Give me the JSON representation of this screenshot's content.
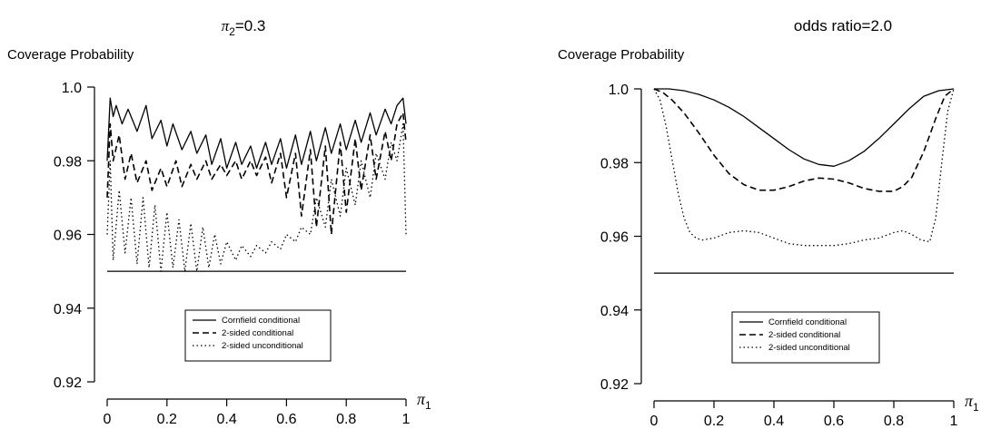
{
  "chart_data": [
    {
      "type": "line",
      "title_main": "π",
      "title_sub": "2",
      "title_rest": "=0.3",
      "ylabel": "Coverage Probability",
      "xlabel_main": "π",
      "xlabel_sub": "1",
      "xlim": [
        0,
        1
      ],
      "ylim": [
        0.92,
        1.0
      ],
      "xticks": [
        0,
        0.2,
        0.4,
        0.6,
        0.8,
        1
      ],
      "xtick_labels": [
        "0",
        "0.2",
        "0.4",
        "0.6",
        "0.8",
        "1"
      ],
      "yticks": [
        0.92,
        0.94,
        0.96,
        0.98,
        1.0
      ],
      "ytick_labels": [
        "0.92",
        "0.94",
        "0.96",
        "0.98",
        "1.0"
      ],
      "legend": [
        "Cornfield conditional",
        "2-sided conditional",
        "2-sided unconditional"
      ],
      "legend_position": "bottom-center",
      "reference_line": 0.95,
      "series": [
        {
          "name": "Cornfield conditional",
          "style": "solid",
          "x": [
            0,
            0.01,
            0.02,
            0.03,
            0.05,
            0.07,
            0.1,
            0.13,
            0.15,
            0.18,
            0.2,
            0.22,
            0.25,
            0.28,
            0.3,
            0.33,
            0.35,
            0.38,
            0.4,
            0.43,
            0.45,
            0.48,
            0.5,
            0.53,
            0.55,
            0.58,
            0.6,
            0.63,
            0.65,
            0.68,
            0.7,
            0.73,
            0.75,
            0.78,
            0.8,
            0.83,
            0.85,
            0.88,
            0.9,
            0.93,
            0.95,
            0.97,
            0.99,
            1.0
          ],
          "y": [
            0.98,
            0.997,
            0.992,
            0.995,
            0.99,
            0.994,
            0.988,
            0.995,
            0.986,
            0.991,
            0.984,
            0.99,
            0.983,
            0.988,
            0.982,
            0.987,
            0.979,
            0.986,
            0.978,
            0.985,
            0.979,
            0.984,
            0.978,
            0.985,
            0.979,
            0.986,
            0.978,
            0.987,
            0.979,
            0.988,
            0.98,
            0.989,
            0.982,
            0.99,
            0.983,
            0.991,
            0.985,
            0.993,
            0.987,
            0.994,
            0.99,
            0.995,
            0.997,
            0.99
          ]
        },
        {
          "name": "2-sided conditional",
          "style": "dashed",
          "x": [
            0,
            0.01,
            0.02,
            0.04,
            0.06,
            0.08,
            0.1,
            0.13,
            0.15,
            0.18,
            0.2,
            0.23,
            0.25,
            0.28,
            0.3,
            0.33,
            0.35,
            0.38,
            0.4,
            0.43,
            0.45,
            0.48,
            0.5,
            0.53,
            0.55,
            0.58,
            0.6,
            0.63,
            0.65,
            0.68,
            0.7,
            0.73,
            0.75,
            0.78,
            0.8,
            0.83,
            0.85,
            0.88,
            0.9,
            0.93,
            0.95,
            0.97,
            0.99,
            1.0
          ],
          "y": [
            0.97,
            0.99,
            0.98,
            0.987,
            0.975,
            0.982,
            0.974,
            0.98,
            0.972,
            0.978,
            0.973,
            0.98,
            0.973,
            0.979,
            0.975,
            0.98,
            0.975,
            0.979,
            0.976,
            0.98,
            0.975,
            0.98,
            0.976,
            0.981,
            0.974,
            0.982,
            0.97,
            0.982,
            0.965,
            0.983,
            0.962,
            0.984,
            0.96,
            0.985,
            0.966,
            0.986,
            0.972,
            0.987,
            0.975,
            0.988,
            0.98,
            0.99,
            0.993,
            0.985
          ]
        },
        {
          "name": "2-sided unconditional",
          "style": "dotted",
          "x": [
            0,
            0.01,
            0.02,
            0.04,
            0.06,
            0.08,
            0.1,
            0.12,
            0.14,
            0.16,
            0.18,
            0.2,
            0.22,
            0.24,
            0.26,
            0.28,
            0.3,
            0.32,
            0.34,
            0.36,
            0.38,
            0.4,
            0.43,
            0.45,
            0.48,
            0.5,
            0.53,
            0.55,
            0.58,
            0.6,
            0.63,
            0.65,
            0.68,
            0.7,
            0.73,
            0.75,
            0.78,
            0.8,
            0.83,
            0.85,
            0.88,
            0.9,
            0.93,
            0.95,
            0.97,
            0.99,
            1.0
          ],
          "y": [
            0.96,
            0.98,
            0.953,
            0.972,
            0.955,
            0.97,
            0.952,
            0.97,
            0.951,
            0.968,
            0.95,
            0.966,
            0.951,
            0.964,
            0.95,
            0.963,
            0.95,
            0.962,
            0.951,
            0.96,
            0.952,
            0.958,
            0.953,
            0.957,
            0.954,
            0.957,
            0.955,
            0.958,
            0.956,
            0.96,
            0.958,
            0.962,
            0.96,
            0.97,
            0.962,
            0.975,
            0.965,
            0.978,
            0.968,
            0.98,
            0.97,
            0.982,
            0.975,
            0.985,
            0.98,
            0.99,
            0.96
          ]
        },
        {
          "name": "",
          "style": "solid-ref",
          "x": [
            0,
            1
          ],
          "y": [
            0.95,
            0.95
          ]
        }
      ]
    },
    {
      "type": "line",
      "title_main": "",
      "title_sub": "",
      "title_rest": "odds ratio=2.0",
      "ylabel": "Coverage Probability",
      "xlabel_main": "π",
      "xlabel_sub": "1",
      "xlim": [
        0,
        1
      ],
      "ylim": [
        0.92,
        1.0
      ],
      "xticks": [
        0,
        0.2,
        0.4,
        0.6,
        0.8,
        1
      ],
      "xtick_labels": [
        "0",
        "0.2",
        "0.4",
        "0.6",
        "0.8",
        "1"
      ],
      "yticks": [
        0.92,
        0.94,
        0.96,
        0.98,
        1.0
      ],
      "ytick_labels": [
        "0.92",
        "0.94",
        "0.96",
        "0.98",
        "1.0"
      ],
      "legend": [
        "Cornfield conditional",
        "2-sided conditional",
        "2-sided unconditional"
      ],
      "legend_position": "bottom-center",
      "reference_line": 0.95,
      "series": [
        {
          "name": "Cornfield conditional",
          "style": "solid",
          "x": [
            0,
            0.05,
            0.1,
            0.15,
            0.2,
            0.25,
            0.3,
            0.35,
            0.4,
            0.45,
            0.5,
            0.55,
            0.6,
            0.65,
            0.7,
            0.75,
            0.8,
            0.85,
            0.9,
            0.95,
            1.0
          ],
          "y": [
            1.0,
            1.0,
            0.9995,
            0.9985,
            0.997,
            0.995,
            0.9925,
            0.9895,
            0.9865,
            0.9835,
            0.981,
            0.9795,
            0.979,
            0.9805,
            0.983,
            0.9865,
            0.9905,
            0.9945,
            0.998,
            0.9995,
            1.0
          ]
        },
        {
          "name": "2-sided conditional",
          "style": "dashed",
          "x": [
            0,
            0.03,
            0.06,
            0.1,
            0.15,
            0.2,
            0.25,
            0.3,
            0.35,
            0.4,
            0.45,
            0.5,
            0.55,
            0.6,
            0.65,
            0.7,
            0.75,
            0.8,
            0.83,
            0.86,
            0.9,
            0.94,
            0.97,
            1.0
          ],
          "y": [
            1.0,
            0.999,
            0.997,
            0.9935,
            0.988,
            0.982,
            0.977,
            0.974,
            0.9725,
            0.9725,
            0.9735,
            0.975,
            0.9758,
            0.9755,
            0.9745,
            0.973,
            0.9722,
            0.9722,
            0.9735,
            0.976,
            0.983,
            0.992,
            0.998,
            1.0
          ]
        },
        {
          "name": "2-sided unconditional",
          "style": "dotted",
          "x": [
            0,
            0.02,
            0.04,
            0.06,
            0.08,
            0.1,
            0.12,
            0.14,
            0.16,
            0.2,
            0.25,
            0.3,
            0.35,
            0.4,
            0.45,
            0.5,
            0.55,
            0.6,
            0.65,
            0.7,
            0.75,
            0.8,
            0.83,
            0.86,
            0.89,
            0.92,
            0.94,
            0.96,
            0.98,
            1.0
          ],
          "y": [
            1.0,
            0.997,
            0.99,
            0.981,
            0.972,
            0.965,
            0.961,
            0.9595,
            0.959,
            0.9595,
            0.961,
            0.9615,
            0.961,
            0.9595,
            0.958,
            0.9575,
            0.9575,
            0.9575,
            0.958,
            0.959,
            0.9595,
            0.961,
            0.9615,
            0.9605,
            0.959,
            0.9585,
            0.965,
            0.98,
            0.994,
            1.0
          ]
        },
        {
          "name": "",
          "style": "solid-ref",
          "x": [
            0,
            1
          ],
          "y": [
            0.95,
            0.95
          ]
        }
      ]
    }
  ]
}
